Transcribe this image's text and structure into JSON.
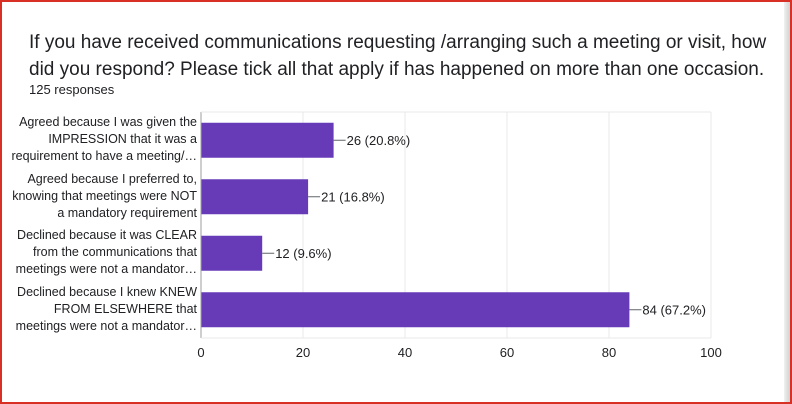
{
  "question": {
    "title": "If you have received communications requesting /arranging such a meeting or visit, how did you respond? Please tick all that apply if has happened on more than one occasion.",
    "responses": "125 responses"
  },
  "colors": {
    "bar": "#673ab7",
    "frame": "#d93025",
    "grid": "#e8e8e8",
    "axis": "#9e9e9e",
    "text": "#202124"
  },
  "chart_data": {
    "type": "bar",
    "orientation": "horizontal",
    "categories": [
      "Agreed because I was given the\nIMPRESSION that it was a\nrequirement to have a meeting/…",
      "Agreed because I preferred to,\nknowing that meetings were NOT\na mandatory requirement",
      "Declined because it was CLEAR\nfrom the communications that\nmeetings were not a mandator…",
      "Declined because I knew KNEW\nFROM ELSEWHERE that\nmeetings were not a mandator…"
    ],
    "values": [
      26,
      21,
      12,
      84
    ],
    "data_labels": [
      "26 (20.8%)",
      "21 (16.8%)",
      "12 (9.6%)",
      "84 (67.2%)"
    ],
    "xlim": [
      0,
      100
    ],
    "xticks": [
      0,
      20,
      40,
      60,
      80,
      100
    ],
    "grid": true
  }
}
